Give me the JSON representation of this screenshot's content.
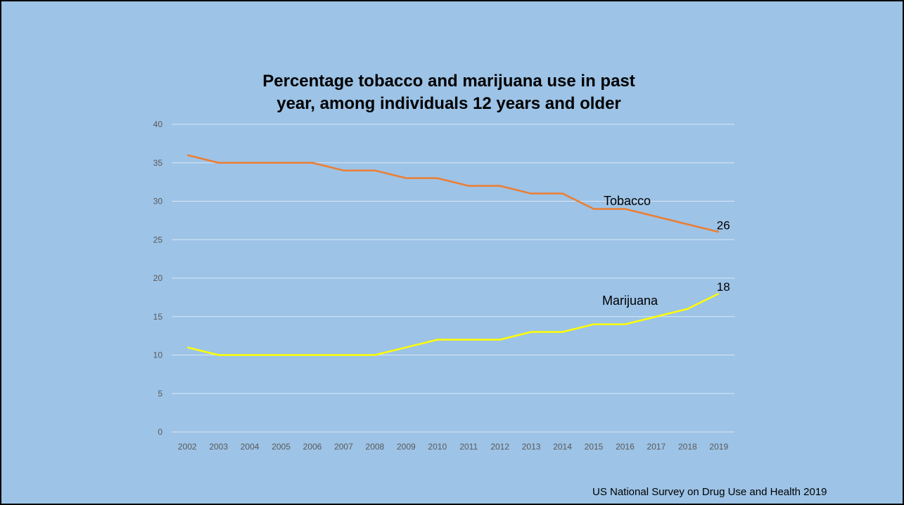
{
  "slide": {
    "source_note": "US National Survey on Drug Use and Health 2019"
  },
  "chart_data": {
    "type": "line",
    "title_lines": [
      "Percentage tobacco and marijuana use in past",
      "year, among individuals 12 years and older"
    ],
    "categories": [
      "2002",
      "2003",
      "2004",
      "2005",
      "2006",
      "2007",
      "2008",
      "2009",
      "2010",
      "2011",
      "2012",
      "2013",
      "2014",
      "2015",
      "2016",
      "2017",
      "2018",
      "2019"
    ],
    "series": [
      {
        "name": "Tobacco",
        "color": "#ed7d31",
        "values": [
          36,
          35,
          35,
          35,
          35,
          34,
          34,
          33,
          33,
          32,
          32,
          31,
          31,
          29,
          29,
          28,
          27,
          26
        ],
        "end_label": "26"
      },
      {
        "name": "Marijuana",
        "color": "#ffff00",
        "values": [
          11,
          10,
          10,
          10,
          10,
          10,
          10,
          11,
          12,
          12,
          12,
          13,
          13,
          14,
          14,
          15,
          16,
          18
        ],
        "end_label": "18"
      }
    ],
    "ylim": [
      0,
      40
    ],
    "yticks": [
      0,
      5,
      10,
      15,
      20,
      25,
      30,
      35,
      40
    ],
    "grid": true,
    "legend": "none",
    "colors": {
      "background": "#9dc3e6",
      "gridline": "#d9e7f5",
      "tick_text": "#595959"
    }
  }
}
